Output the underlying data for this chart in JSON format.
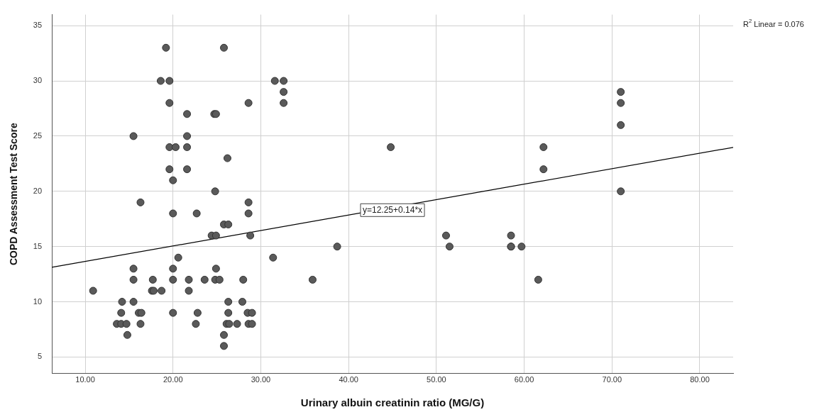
{
  "chart_data": {
    "type": "scatter",
    "xlabel": "Urinary albuin creatinin ratio (MG/G)",
    "ylabel": "COPD Assessment Test Score",
    "xlim": [
      6.2,
      83.8
    ],
    "ylim": [
      3.5,
      36
    ],
    "xticks": [
      {
        "value": 10,
        "label": "10.00"
      },
      {
        "value": 20,
        "label": "20.00"
      },
      {
        "value": 30,
        "label": "30.00"
      },
      {
        "value": 40,
        "label": "40.00"
      },
      {
        "value": 50,
        "label": "50.00"
      },
      {
        "value": 60,
        "label": "60.00"
      },
      {
        "value": 70,
        "label": "70.00"
      },
      {
        "value": 80,
        "label": "80.00"
      }
    ],
    "yticks": [
      5,
      10,
      15,
      20,
      25,
      30,
      35
    ],
    "grid": true,
    "legend": false,
    "marker": "circle",
    "series": [
      {
        "type": "scatter",
        "color": "#5a5a5a",
        "x": [
          19.2,
          25.8,
          18.6,
          19.6,
          19.6,
          28.6,
          21.6,
          24.7,
          24.9,
          15.5,
          21.6,
          19.6,
          20.3,
          21.6,
          26.2,
          19.6,
          21.6,
          20.0,
          24.8,
          16.3,
          28.6,
          20.0,
          22.7,
          28.6,
          25.8,
          26.3,
          24.4,
          24.9,
          28.8,
          20.6,
          15.5,
          20.0,
          24.9,
          15.5,
          17.7,
          20.0,
          21.8,
          23.6,
          24.8,
          25.3,
          28.0,
          10.9,
          17.6,
          17.8,
          18.7,
          21.8,
          14.2,
          15.5,
          26.3,
          27.9,
          14.1,
          16.1,
          16.4,
          20.0,
          22.8,
          26.3,
          28.5,
          29.0,
          13.6,
          14.1,
          14.7,
          16.3,
          22.6,
          26.1,
          26.4,
          27.3,
          28.6,
          29.0,
          14.8,
          25.8,
          25.8,
          31.6,
          32.6,
          32.6,
          32.6,
          44.8,
          38.7,
          31.4,
          35.9,
          71.0,
          71.0,
          71.0,
          62.2,
          62.2,
          71.0,
          51.1,
          58.5,
          51.5,
          58.5,
          58.5,
          59.7,
          61.6
        ],
        "values": [
          33,
          33,
          30,
          30,
          28,
          28,
          27,
          27,
          27,
          25,
          25,
          24,
          24,
          24,
          23,
          22,
          22,
          21,
          20,
          19,
          19,
          18,
          18,
          18,
          17,
          17,
          16,
          16,
          16,
          14,
          13,
          13,
          13,
          12,
          12,
          12,
          12,
          12,
          12,
          12,
          12,
          11,
          11,
          11,
          11,
          11,
          10,
          10,
          10,
          10,
          9,
          9,
          9,
          9,
          9,
          9,
          9,
          9,
          8,
          8,
          8,
          8,
          8,
          8,
          8,
          8,
          8,
          8,
          7,
          7,
          6,
          30,
          30,
          29,
          28,
          24,
          15,
          14,
          12,
          29,
          28,
          26,
          24,
          22,
          20,
          16,
          16,
          15,
          15,
          15,
          15,
          12
        ]
      },
      {
        "type": "line",
        "color": "#000000",
        "marker": "none",
        "x": [
          6.2,
          83.8
        ],
        "values": [
          13.12,
          23.98
        ]
      }
    ],
    "annotations": [
      {
        "text": "y=12.25+0.14*x",
        "x": 45,
        "y": 18.3
      },
      "R$^{2}$ Linear = 0.076"
    ]
  }
}
